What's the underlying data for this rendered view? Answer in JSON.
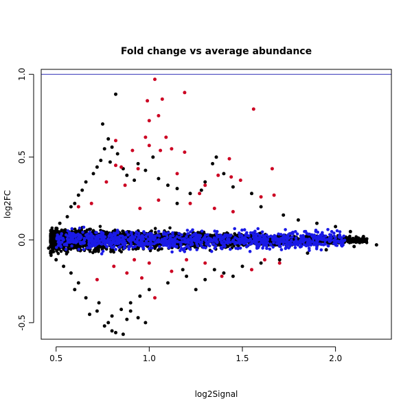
{
  "chart_data": {
    "type": "scatter",
    "title": "Fold change vs average abundance",
    "xlabel": "log2Signal",
    "ylabel": "log2FC",
    "xlim": [
      0.42,
      2.3
    ],
    "ylim": [
      -0.6,
      1.03
    ],
    "x_ticks": [
      0.5,
      1.0,
      1.5,
      2.0
    ],
    "x_tick_labels": [
      "0.5",
      "1.0",
      "1.5",
      "2.0"
    ],
    "y_ticks": [
      -0.5,
      0.0,
      0.5,
      1.0
    ],
    "y_tick_labels": [
      "-0.5",
      "0.0",
      "0.5",
      "1.0"
    ],
    "reference_line": {
      "y": 1.0,
      "color": "#2b2bb5"
    },
    "grid": false,
    "legend": "none",
    "series": [
      {
        "color": "#000000",
        "points": [
          [
            0.82,
            0.88
          ],
          [
            0.75,
            0.7
          ],
          [
            0.78,
            0.61
          ],
          [
            0.8,
            0.56
          ],
          [
            0.76,
            0.55
          ],
          [
            0.83,
            0.52
          ],
          [
            0.74,
            0.48
          ],
          [
            0.79,
            0.47
          ],
          [
            0.72,
            0.44
          ],
          [
            0.86,
            0.43
          ],
          [
            0.7,
            0.4
          ],
          [
            0.88,
            0.39
          ],
          [
            0.94,
            0.46
          ],
          [
            0.98,
            0.42
          ],
          [
            1.02,
            0.5
          ],
          [
            0.92,
            0.36
          ],
          [
            1.05,
            0.37
          ],
          [
            1.1,
            0.33
          ],
          [
            1.36,
            0.5
          ],
          [
            1.34,
            0.46
          ],
          [
            1.4,
            0.4
          ],
          [
            1.15,
            0.31
          ],
          [
            1.22,
            0.28
          ],
          [
            1.28,
            0.3
          ],
          [
            1.3,
            0.35
          ],
          [
            1.45,
            0.32
          ],
          [
            1.55,
            0.28
          ],
          [
            1.6,
            0.2
          ],
          [
            1.72,
            0.15
          ],
          [
            1.8,
            0.12
          ],
          [
            1.9,
            0.1
          ],
          [
            2.0,
            0.08
          ],
          [
            2.08,
            0.05
          ],
          [
            2.15,
            0.02
          ],
          [
            2.22,
            -0.03
          ],
          [
            2.1,
            -0.04
          ],
          [
            1.95,
            -0.06
          ],
          [
            1.85,
            -0.08
          ],
          [
            1.7,
            -0.12
          ],
          [
            1.6,
            -0.14
          ],
          [
            1.5,
            -0.16
          ],
          [
            1.4,
            -0.2
          ],
          [
            1.3,
            -0.24
          ],
          [
            1.2,
            -0.22
          ],
          [
            1.1,
            -0.26
          ],
          [
            1.0,
            -0.3
          ],
          [
            0.95,
            -0.34
          ],
          [
            0.9,
            -0.38
          ],
          [
            0.85,
            -0.42
          ],
          [
            0.8,
            -0.46
          ],
          [
            0.78,
            -0.5
          ],
          [
            0.76,
            -0.52
          ],
          [
            0.8,
            -0.55
          ],
          [
            0.82,
            -0.56
          ],
          [
            0.86,
            -0.57
          ],
          [
            0.72,
            -0.43
          ],
          [
            0.68,
            -0.45
          ],
          [
            0.73,
            -0.38
          ],
          [
            0.88,
            -0.48
          ],
          [
            0.94,
            -0.47
          ],
          [
            0.98,
            -0.5
          ],
          [
            0.9,
            -0.43
          ],
          [
            0.66,
            -0.35
          ],
          [
            0.62,
            -0.26
          ],
          [
            0.6,
            -0.3
          ],
          [
            0.64,
            0.3
          ],
          [
            0.66,
            0.35
          ],
          [
            0.62,
            0.27
          ],
          [
            0.6,
            0.22
          ],
          [
            0.58,
            0.2
          ],
          [
            0.56,
            0.14
          ],
          [
            0.52,
            0.1
          ],
          [
            0.5,
            0.07
          ],
          [
            0.48,
            0.05
          ],
          [
            0.46,
            -0.05
          ],
          [
            0.47,
            -0.08
          ],
          [
            0.5,
            -0.12
          ],
          [
            0.54,
            -0.16
          ],
          [
            0.58,
            -0.2
          ],
          [
            1.25,
            -0.3
          ],
          [
            1.35,
            -0.18
          ],
          [
            1.45,
            -0.22
          ],
          [
            1.15,
            0.22
          ],
          [
            1.18,
            -0.18
          ]
        ]
      },
      {
        "color": "#cc0022",
        "points": [
          [
            1.03,
            0.97
          ],
          [
            1.19,
            0.89
          ],
          [
            0.99,
            0.84
          ],
          [
            1.07,
            0.85
          ],
          [
            1.56,
            0.79
          ],
          [
            1.05,
            0.75
          ],
          [
            1.0,
            0.72
          ],
          [
            0.82,
            0.6
          ],
          [
            0.98,
            0.62
          ],
          [
            1.09,
            0.62
          ],
          [
            1.0,
            0.57
          ],
          [
            0.91,
            0.54
          ],
          [
            1.06,
            0.54
          ],
          [
            1.12,
            0.55
          ],
          [
            1.19,
            0.53
          ],
          [
            0.82,
            0.45
          ],
          [
            0.85,
            0.44
          ],
          [
            1.43,
            0.49
          ],
          [
            1.66,
            0.43
          ],
          [
            0.94,
            0.43
          ],
          [
            1.15,
            0.4
          ],
          [
            1.37,
            0.39
          ],
          [
            1.44,
            0.38
          ],
          [
            1.49,
            0.36
          ],
          [
            1.3,
            0.33
          ],
          [
            0.77,
            0.35
          ],
          [
            0.87,
            0.33
          ],
          [
            1.27,
            0.28
          ],
          [
            1.6,
            0.26
          ],
          [
            1.67,
            0.27
          ],
          [
            1.22,
            0.22
          ],
          [
            1.05,
            0.24
          ],
          [
            0.62,
            0.2
          ],
          [
            0.69,
            0.22
          ],
          [
            0.95,
            0.19
          ],
          [
            1.35,
            0.19
          ],
          [
            1.45,
            0.17
          ],
          [
            1.62,
            -0.12
          ],
          [
            1.7,
            -0.14
          ],
          [
            1.55,
            -0.18
          ],
          [
            1.39,
            -0.22
          ],
          [
            1.03,
            -0.35
          ],
          [
            0.96,
            -0.23
          ],
          [
            0.88,
            -0.2
          ],
          [
            0.81,
            -0.16
          ],
          [
            0.72,
            -0.24
          ],
          [
            1.12,
            -0.19
          ],
          [
            1.3,
            -0.14
          ],
          [
            1.2,
            -0.12
          ],
          [
            1.0,
            -0.14
          ],
          [
            0.92,
            -0.12
          ]
        ]
      }
    ]
  }
}
